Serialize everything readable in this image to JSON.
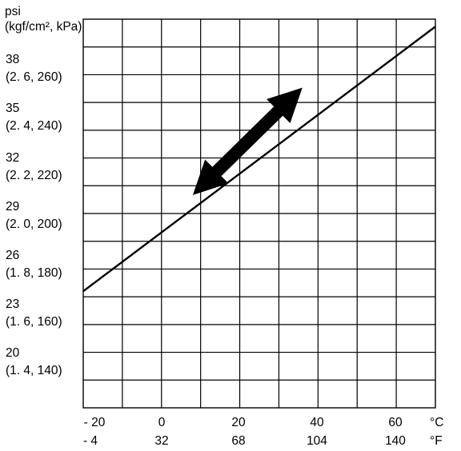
{
  "chart_data": {
    "type": "line",
    "y_axis_title_line1": "psi",
    "y_axis_title_line2": "(kgf/cm², kPa)",
    "x_range_c": [
      -20,
      70
    ],
    "y_range_psi": [
      17,
      38
    ],
    "grid": true,
    "y_ticks": [
      {
        "psi": 38,
        "alt": "(2. 6, 260)"
      },
      {
        "psi": 35,
        "alt": "(2. 4, 240)"
      },
      {
        "psi": 32,
        "alt": "(2. 2, 220)"
      },
      {
        "psi": 29,
        "alt": "(2. 0, 200)"
      },
      {
        "psi": 26,
        "alt": "(1. 8, 180)"
      },
      {
        "psi": 23,
        "alt": "(1. 6, 160)"
      },
      {
        "psi": 20,
        "alt": "(1. 4, 140)"
      }
    ],
    "y_tick_labels": [
      "38",
      "35",
      "32",
      "29",
      "26",
      "23",
      "20"
    ],
    "x_ticks_c": [
      -20,
      0,
      20,
      40,
      60
    ],
    "x_tick_labels_c": [
      "- 20",
      "0",
      "20",
      "40",
      "60"
    ],
    "x_tick_labels_f": [
      "- 4",
      "32",
      "68",
      "104",
      "140"
    ],
    "x_unit_c": "°C",
    "x_unit_f": "°F",
    "series": [
      {
        "x": [
          -20,
          70
        ],
        "y": [
          23.3,
          37.6
        ]
      }
    ],
    "annotation": {
      "type": "double-arrow",
      "from": [
        8,
        28.5
      ],
      "to": [
        36,
        34.3
      ]
    }
  }
}
